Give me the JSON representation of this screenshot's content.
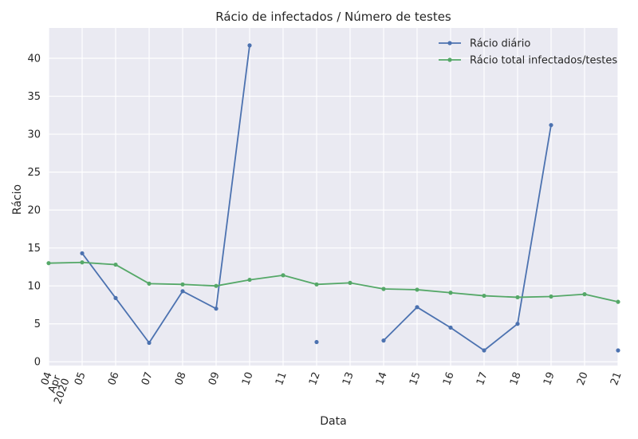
{
  "chart_data": {
    "type": "line",
    "title": "Rácio de infectados / Número de testes",
    "xlabel": "Data",
    "ylabel": "Rácio",
    "x": [
      "04",
      "05",
      "06",
      "07",
      "08",
      "09",
      "10",
      "11",
      "12",
      "13",
      "14",
      "15",
      "16",
      "17",
      "18",
      "19",
      "20",
      "21"
    ],
    "x_first_sublabels": [
      "Apr",
      "2020"
    ],
    "ylim": [
      -0.5,
      44
    ],
    "yticks": [
      0,
      5,
      10,
      15,
      20,
      25,
      30,
      35,
      40
    ],
    "grid": true,
    "legend_position": "top-right",
    "series": [
      {
        "name": "Rácio diário",
        "color": "#4c72b0",
        "values": [
          null,
          14.3,
          8.4,
          2.5,
          9.3,
          7.0,
          41.7,
          null,
          2.6,
          null,
          2.8,
          7.2,
          4.5,
          1.5,
          5.0,
          31.2,
          null,
          1.5
        ]
      },
      {
        "name": "Rácio total infectados/testes",
        "color": "#55a868",
        "values": [
          13.0,
          13.1,
          12.8,
          10.3,
          10.2,
          10.0,
          10.8,
          11.4,
          10.2,
          10.4,
          9.6,
          9.5,
          9.1,
          8.7,
          8.5,
          8.6,
          8.9,
          7.9
        ]
      }
    ]
  }
}
